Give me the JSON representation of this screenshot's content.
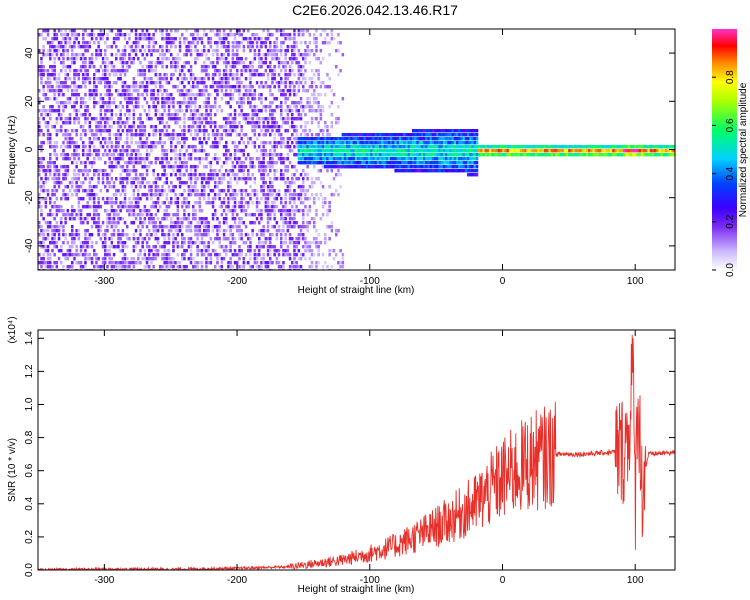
{
  "title": "C2E6.2026.042.13.46.R17",
  "colors": {
    "line": "#e8302a",
    "frame": "#000000",
    "colormap": [
      "#ffffff",
      "#c9b6ff",
      "#7a28f0",
      "#5a00ff",
      "#0000ff",
      "#00ccff",
      "#00ff66",
      "#ffff00",
      "#ff8800",
      "#ff0000",
      "#ff33cc"
    ]
  },
  "chart_data": [
    {
      "type": "heatmap",
      "title": "",
      "xlabel": "Height of straight line (km)",
      "ylabel": "Frequency (Hz)",
      "xlim": [
        -350,
        130
      ],
      "ylim": [
        -50,
        50
      ],
      "xticks": [
        -300,
        -200,
        -100,
        0,
        100
      ],
      "yticks": [
        -40,
        -20,
        0,
        20,
        40
      ],
      "colorbar": {
        "label": "Normalized spectral amplitude",
        "range": [
          0,
          1
        ],
        "ticks": [
          "0.0",
          "0.2",
          "0.4",
          "0.6",
          "0.8"
        ]
      },
      "summary_bands": [
        {
          "x_range": [
            -350,
            -150
          ],
          "freq_range": [
            -50,
            50
          ],
          "amplitude": 0.15,
          "pattern": "scattered noise"
        },
        {
          "x_range": [
            -150,
            -120
          ],
          "freq_range": [
            -50,
            50
          ],
          "amplitude": 0.08,
          "pattern": "faint scattered noise"
        },
        {
          "x_range": [
            -150,
            -20
          ],
          "freq_range": [
            -10,
            10
          ],
          "amplitude": 0.35,
          "pattern": "broad band around 0 Hz"
        },
        {
          "x_range": [
            -20,
            130
          ],
          "freq_range": [
            -3,
            3
          ],
          "amplitude": 0.7,
          "pattern": "narrow line at 0 Hz"
        }
      ]
    },
    {
      "type": "line",
      "title": "",
      "xlabel": "Height of straight line (km)",
      "ylabel": "SNR (10 * v/v)",
      "y_multiplier": "(x10⁴)",
      "xlim": [
        -350,
        130
      ],
      "ylim": [
        0,
        1.45
      ],
      "xticks": [
        -300,
        -200,
        -100,
        0,
        100
      ],
      "yticks": [
        "0.0",
        "0.2",
        "0.4",
        "0.6",
        "0.8",
        "1.0",
        "1.2",
        "1.4"
      ],
      "series": [
        {
          "x": [
            -350,
            -300,
            -250,
            -200,
            -160,
            -140,
            -120,
            -100,
            -80,
            -60,
            -40,
            -20,
            0,
            20,
            40,
            60,
            80,
            90,
            95,
            98,
            100,
            102,
            105,
            110,
            130
          ],
          "y": [
            0.0,
            0.005,
            0.005,
            0.01,
            0.02,
            0.04,
            0.06,
            0.1,
            0.15,
            0.22,
            0.3,
            0.4,
            0.55,
            0.65,
            0.7,
            0.7,
            0.71,
            0.72,
            0.8,
            1.3,
            0.4,
            1.1,
            0.5,
            0.7,
            0.71
          ]
        }
      ]
    }
  ]
}
